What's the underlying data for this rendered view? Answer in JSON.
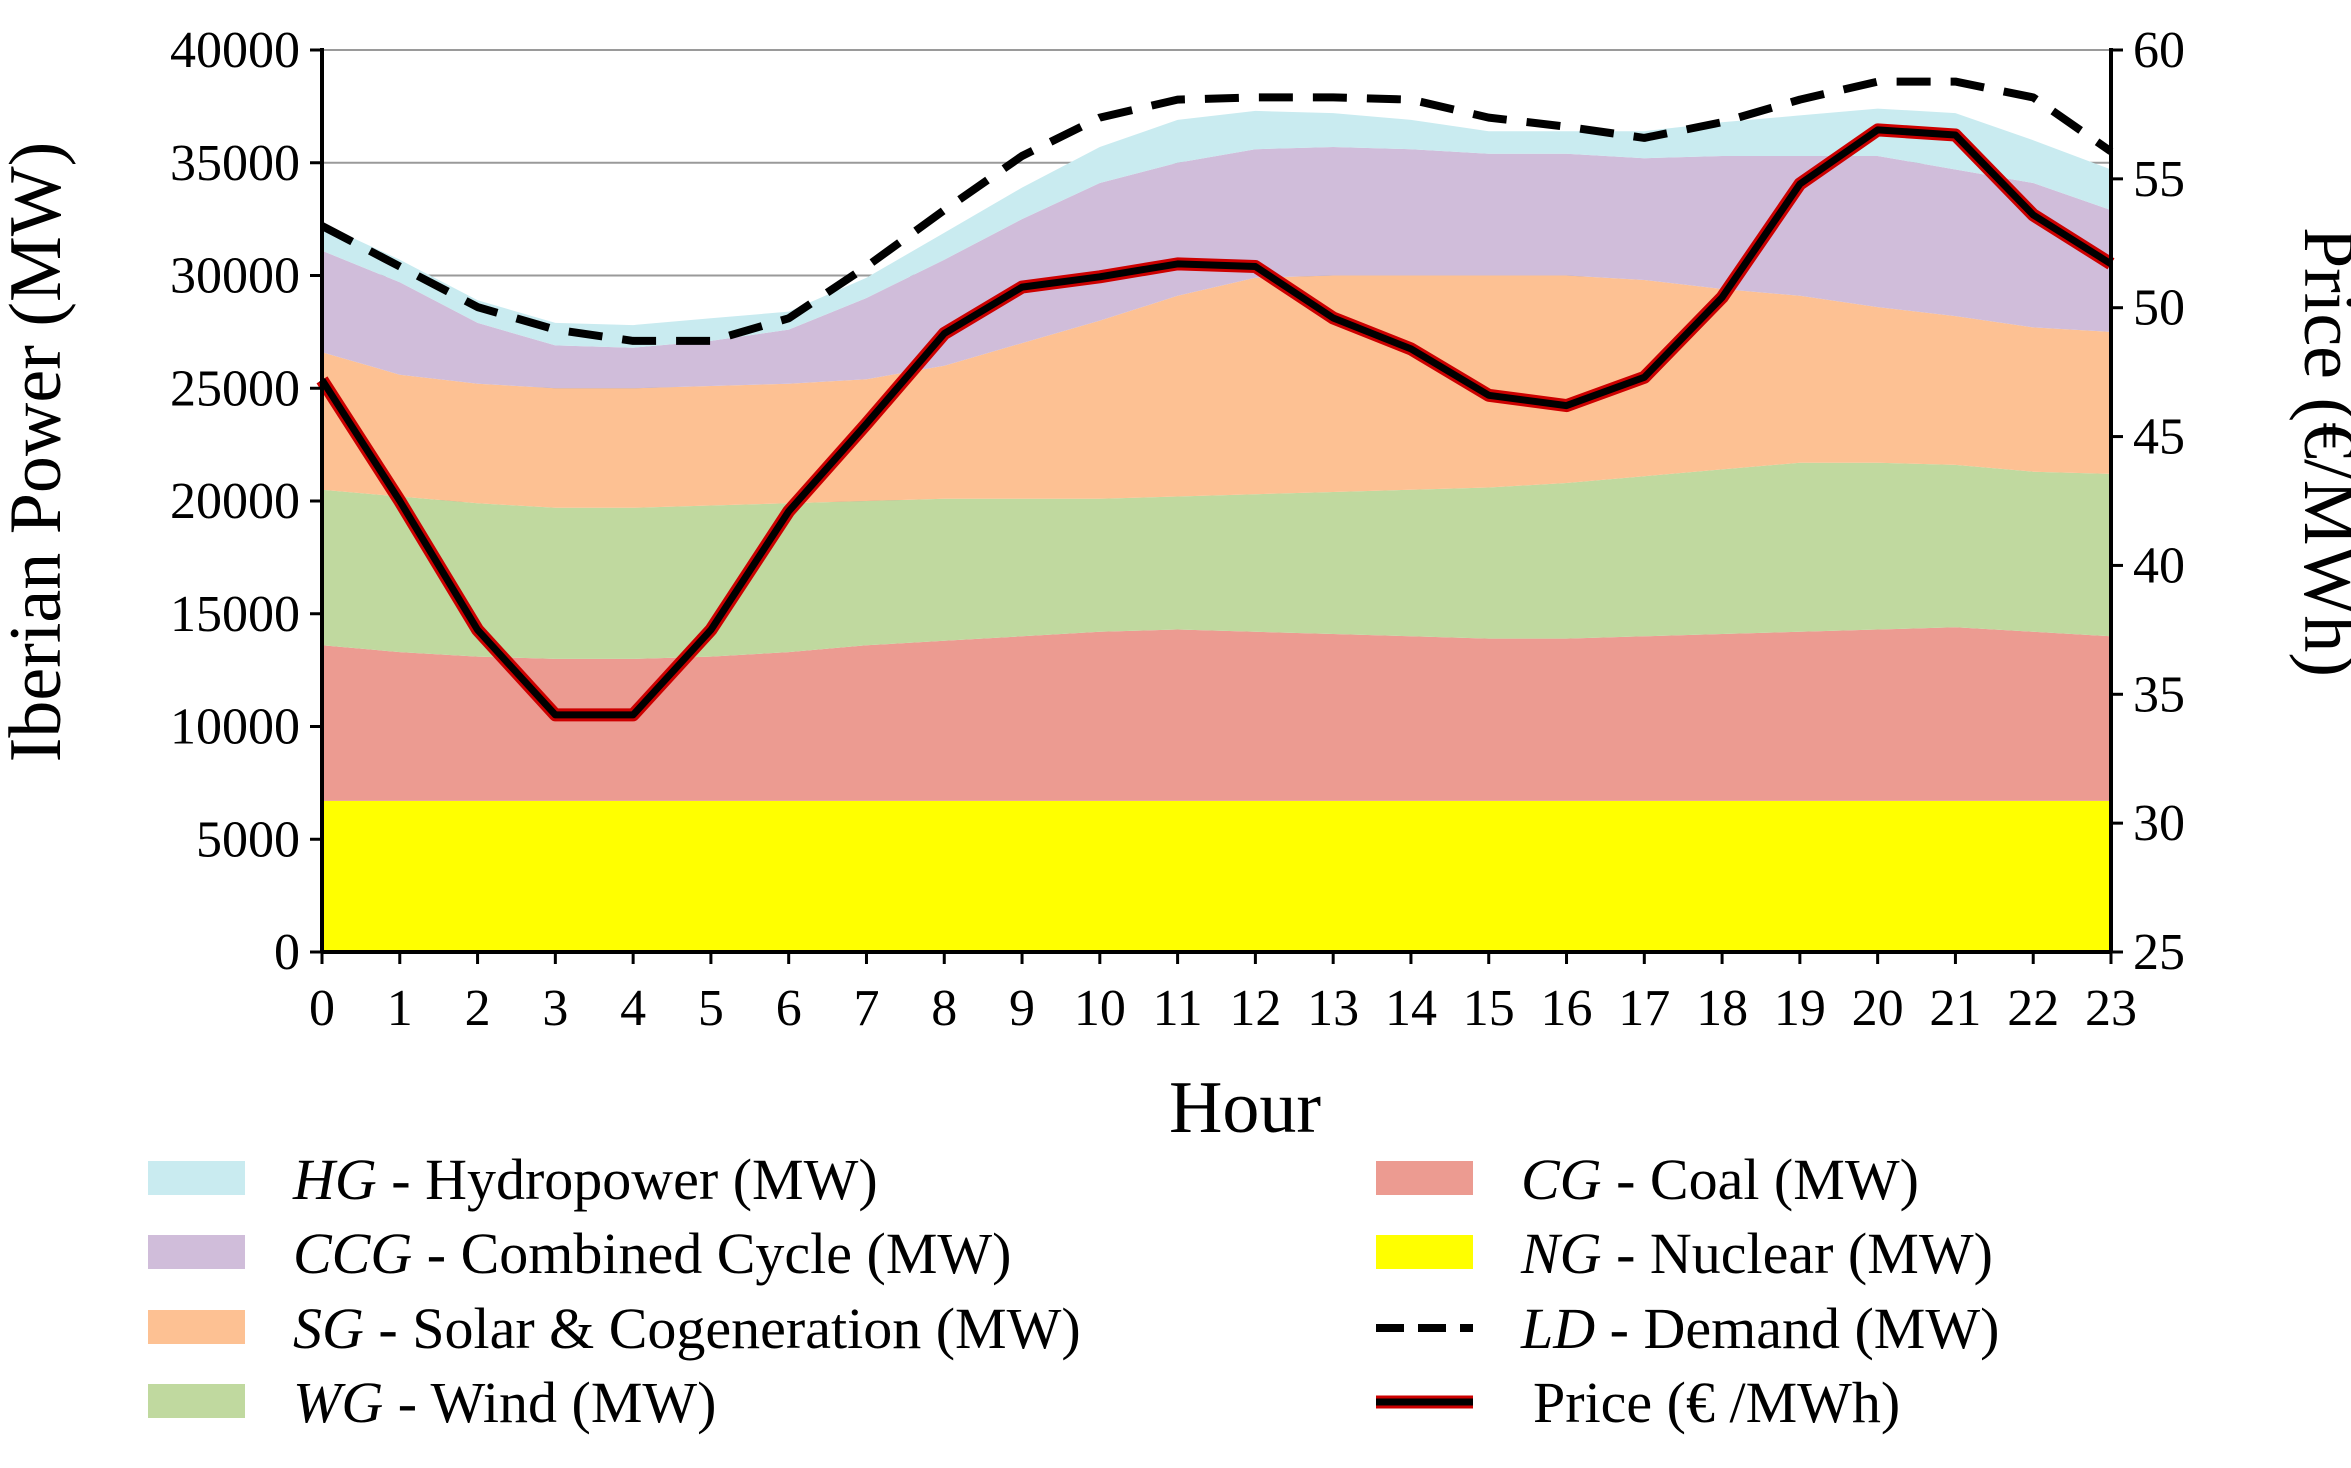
{
  "chart_data": {
    "type": "area",
    "x_label": "Hour",
    "y_label": "Iberian Power (MW)",
    "y2_label": "Price (€/MWh)",
    "x": [
      0,
      1,
      2,
      3,
      4,
      5,
      6,
      7,
      8,
      9,
      10,
      11,
      12,
      13,
      14,
      15,
      16,
      17,
      18,
      19,
      20,
      21,
      22,
      23
    ],
    "x_ticks": [
      "0",
      "1",
      "2",
      "3",
      "4",
      "5",
      "6",
      "7",
      "8",
      "9",
      "10",
      "11",
      "12",
      "13",
      "14",
      "15",
      "16",
      "17",
      "18",
      "19",
      "20",
      "21",
      "22",
      "23"
    ],
    "y_ticks": [
      "0",
      "5000",
      "10000",
      "15000",
      "20000",
      "25000",
      "30000",
      "35000",
      "40000"
    ],
    "y2_ticks": [
      "25",
      "30",
      "35",
      "40",
      "45",
      "50",
      "55",
      "60"
    ],
    "ylim": [
      0,
      40000
    ],
    "y2lim": [
      25,
      60
    ],
    "grid": "horizontal",
    "legend_position": "bottom",
    "stacked_series": [
      {
        "code": "NG",
        "name": "Nuclear (MW)",
        "color": "#ffff00",
        "values": [
          6700,
          6700,
          6700,
          6700,
          6700,
          6700,
          6700,
          6700,
          6700,
          6700,
          6700,
          6700,
          6700,
          6700,
          6700,
          6700,
          6700,
          6700,
          6700,
          6700,
          6700,
          6700,
          6700,
          6700
        ]
      },
      {
        "code": "CG",
        "name": "Coal (MW)",
        "color": "#ec9b91",
        "values": [
          6900,
          6600,
          6400,
          6300,
          6300,
          6400,
          6600,
          6900,
          7100,
          7300,
          7500,
          7600,
          7500,
          7400,
          7300,
          7200,
          7200,
          7300,
          7400,
          7500,
          7600,
          7700,
          7500,
          7300
        ]
      },
      {
        "code": "WG",
        "name": "Wind (MW)",
        "color": "#c0d99f",
        "values": [
          6900,
          6900,
          6800,
          6700,
          6700,
          6700,
          6600,
          6400,
          6300,
          6100,
          5900,
          5900,
          6100,
          6300,
          6500,
          6700,
          6900,
          7100,
          7300,
          7500,
          7400,
          7200,
          7100,
          7200
        ]
      },
      {
        "code": "SG",
        "name": "Solar & Cogeneration (MW)",
        "color": "#fdc193",
        "values": [
          6100,
          5400,
          5300,
          5300,
          5300,
          5300,
          5300,
          5400,
          5900,
          6900,
          7900,
          8900,
          9600,
          9600,
          9500,
          9400,
          9200,
          8700,
          8000,
          7400,
          6900,
          6600,
          6400,
          6300
        ]
      },
      {
        "code": "CCG",
        "name": "Combined Cycle (MW)",
        "color": "#d0bdda",
        "values": [
          4500,
          4100,
          2700,
          1900,
          1800,
          2000,
          2400,
          3600,
          4700,
          5500,
          6100,
          5900,
          5700,
          5700,
          5600,
          5400,
          5400,
          5400,
          5900,
          6200,
          6700,
          6500,
          6400,
          5400
        ]
      },
      {
        "code": "HG",
        "name": "Hydropower (MW)",
        "color": "#c9ebf0",
        "values": [
          1200,
          1000,
          1000,
          1000,
          1000,
          1000,
          800,
          900,
          1200,
          1400,
          1600,
          1900,
          1700,
          1500,
          1300,
          1000,
          1000,
          1200,
          1500,
          1800,
          2100,
          2500,
          1900,
          1800
        ]
      }
    ],
    "lines": [
      {
        "code": "LD",
        "name": "Demand (MW)",
        "axis": "left",
        "style": "dashed",
        "color": "#000000",
        "values": [
          32200,
          30400,
          28600,
          27600,
          27100,
          27100,
          28100,
          30400,
          32900,
          35300,
          37000,
          37800,
          37900,
          37900,
          37800,
          37000,
          36600,
          36100,
          36800,
          37800,
          38600,
          38600,
          37900,
          35500
        ]
      },
      {
        "code": "",
        "name": "Price (€ /MWh)",
        "axis": "right",
        "style": "solid",
        "color": "#000000",
        "edge_color": "#cc0000",
        "values": [
          47.2,
          42.5,
          37.5,
          34.2,
          34.2,
          37.5,
          42.1,
          45.5,
          49.0,
          50.8,
          51.2,
          51.7,
          51.6,
          49.6,
          48.4,
          46.6,
          46.2,
          47.3,
          50.4,
          54.8,
          56.9,
          56.7,
          53.6,
          51.7
        ]
      }
    ],
    "legend": [
      {
        "code": "HG",
        "label": " - Hydropower (MW)",
        "kind": "patch",
        "color": "#c9ebf0"
      },
      {
        "code": "CCG",
        "label": " - Combined Cycle (MW)",
        "kind": "patch",
        "color": "#d0bdda"
      },
      {
        "code": "SG",
        "label": " - Solar & Cogeneration (MW)",
        "kind": "patch",
        "color": "#fdc193"
      },
      {
        "code": "WG",
        "label": " - Wind (MW)",
        "kind": "patch",
        "color": "#c0d99f"
      },
      {
        "code": "CG",
        "label": " - Coal (MW)",
        "kind": "patch",
        "color": "#ec9b91"
      },
      {
        "code": "NG",
        "label": " - Nuclear (MW)",
        "kind": "patch",
        "color": "#ffff00"
      },
      {
        "code": "LD",
        "label": " - Demand (MW)",
        "kind": "dashed",
        "color": "#000000"
      },
      {
        "code": "",
        "label": "Price (€ /MWh)",
        "kind": "price",
        "color": "#000000"
      }
    ]
  }
}
